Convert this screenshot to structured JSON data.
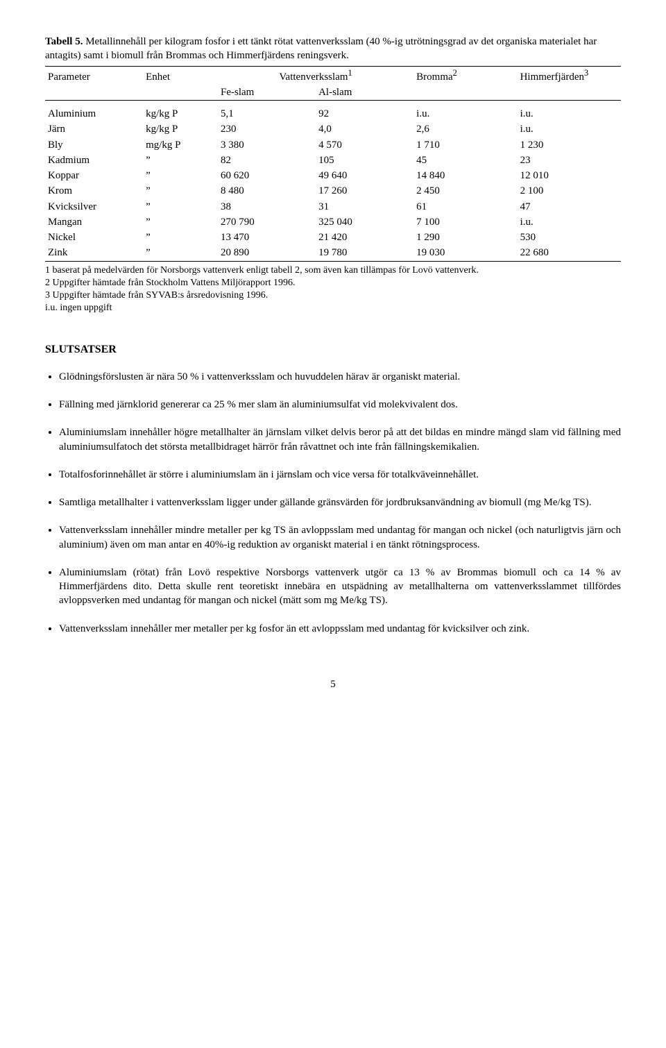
{
  "caption_bold": "Tabell 5.",
  "caption_rest": " Metallinnehåll per kilogram fosfor i ett tänkt rötat vattenverksslam (40 %-ig utrötningsgrad av det organiska materialet har antagits) samt i biomull från Brommas och Himmerfjärdens reningsverk.",
  "table": {
    "head": {
      "parameter": "Parameter",
      "enhet": "Enhet",
      "vattenverksslam": "Vattenverksslam",
      "sup1": "1",
      "bromma": "Bromma",
      "sup2": "2",
      "himmer": "Himmerfjärden",
      "sup3": "3",
      "fe": "Fe-slam",
      "al": "Al-slam"
    },
    "rows": [
      {
        "p": "Aluminium",
        "u": "kg/kg P",
        "fe": "5,1",
        "al": "92",
        "br": "i.u.",
        "hi": "i.u."
      },
      {
        "p": "Järn",
        "u": "kg/kg P",
        "fe": "230",
        "al": "4,0",
        "br": "2,6",
        "hi": "i.u."
      },
      {
        "p": "Bly",
        "u": "mg/kg P",
        "fe": "3 380",
        "al": "4 570",
        "br": "1 710",
        "hi": "1 230"
      },
      {
        "p": "Kadmium",
        "u": "”",
        "fe": "82",
        "al": "105",
        "br": "45",
        "hi": "23"
      },
      {
        "p": "Koppar",
        "u": "”",
        "fe": "60 620",
        "al": "49 640",
        "br": "14 840",
        "hi": "12 010"
      },
      {
        "p": "Krom",
        "u": "”",
        "fe": "8 480",
        "al": "17 260",
        "br": "2 450",
        "hi": "2 100"
      },
      {
        "p": "Kvicksilver",
        "u": "”",
        "fe": "38",
        "al": "31",
        "br": "61",
        "hi": "47"
      },
      {
        "p": "Mangan",
        "u": "”",
        "fe": "270 790",
        "al": "325 040",
        "br": "7 100",
        "hi": "i.u."
      },
      {
        "p": "Nickel",
        "u": "”",
        "fe": "13 470",
        "al": "21 420",
        "br": "1 290",
        "hi": "530"
      },
      {
        "p": "Zink",
        "u": "”",
        "fe": "20 890",
        "al": "19 780",
        "br": "19 030",
        "hi": "22 680"
      }
    ]
  },
  "notes": [
    "1 baserat på medelvärden för Norsborgs vattenverk enligt tabell 2, som även kan tillämpas för Lovö vattenverk.",
    "2 Uppgifter hämtade från Stockholm Vattens Miljörapport 1996.",
    "3 Uppgifter hämtade från SYVAB:s årsredovisning 1996.",
    "i.u. ingen uppgift"
  ],
  "section_title": "SLUTSATSER",
  "bullets": [
    "Glödningsförslusten är nära 50 % i vattenverksslam och huvuddelen härav är organiskt material.",
    "Fällning med järnklorid genererar ca 25 % mer slam än aluminiumsulfat vid molekvivalent dos.",
    "Aluminiumslam innehåller högre metallhalter än järnslam vilket delvis beror på att det bildas en mindre mängd slam vid fällning med aluminiumsulfatoch det största metallbidraget härrör från råvattnet och inte från fällningskemikalien.",
    "Totalfosforinnehållet är större i aluminiumslam än i järnslam och vice versa för totalkväveinnehållet.",
    "Samtliga metallhalter i vattenverksslam ligger under gällande gränsvärden för jordbruksanvändning av biomull (mg Me/kg TS).",
    "Vattenverksslam innehåller mindre metaller per kg TS än avloppsslam med undantag för mangan och nickel (och naturligtvis järn och aluminium) även om man antar en 40%-ig reduktion av organiskt material i en tänkt rötningsprocess.",
    "Aluminiumslam (rötat) från Lovö respektive Norsborgs vattenverk utgör ca 13 % av Brommas biomull och ca 14 % av Himmerfjärdens dito. Detta skulle rent teoretiskt innebära en utspädning av metallhalterna om vattenverksslammet tillfördes avloppsverken med undantag för mangan och nickel (mätt som mg Me/kg TS).",
    "Vattenverksslam innehåller mer metaller per kg fosfor än ett avloppsslam med undantag för kvicksilver och zink."
  ],
  "pagenum": "5"
}
